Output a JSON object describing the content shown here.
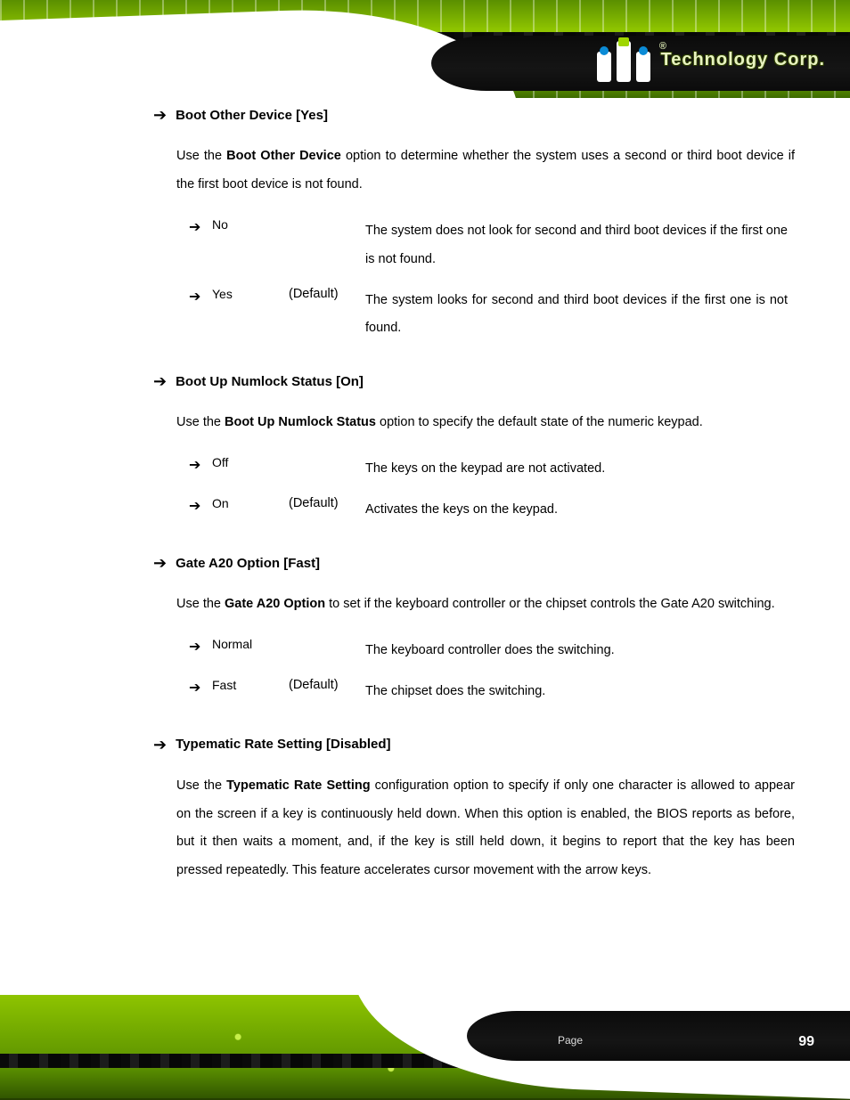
{
  "header": {
    "brand_text": "Technology Corp.",
    "registered_mark": "®"
  },
  "sections": [
    {
      "title": "Boot Other Device [Yes]",
      "intro_pre": "Use the ",
      "intro_bold": "Boot Other Device",
      "intro_post": " option to determine whether the system uses a second or third boot device if the first boot device is not found.",
      "options": [
        {
          "name": "No",
          "default": "",
          "desc": "The system does not look for second and third boot devices if the first one is not found."
        },
        {
          "name": "Yes",
          "default": "(Default)",
          "desc": "The system looks for second and third boot devices if the first one is not found."
        }
      ]
    },
    {
      "title": "Boot Up Numlock Status [On]",
      "intro_pre": "Use the ",
      "intro_bold": "Boot Up Numlock Status",
      "intro_post": " option to specify the default state of the numeric keypad.",
      "options": [
        {
          "name": "Off",
          "default": "",
          "desc": "The keys on the keypad are not activated."
        },
        {
          "name": "On",
          "default": "(Default)",
          "desc": "Activates the keys on the keypad."
        }
      ]
    },
    {
      "title": "Gate A20 Option [Fast]",
      "intro_pre": "Use the ",
      "intro_bold": "Gate A20 Option",
      "intro_post": " to set if the keyboard controller or the chipset controls the Gate A20 switching.",
      "options": [
        {
          "name": "Normal",
          "default": "",
          "desc": "The keyboard controller does the switching."
        },
        {
          "name": "Fast",
          "default": "(Default)",
          "desc": "The chipset does the switching."
        }
      ]
    },
    {
      "title": "Typematic Rate Setting [Disabled]",
      "intro_pre": "Use the ",
      "intro_bold": "Typematic Rate Setting",
      "intro_post": " configuration option to specify if only one character is allowed to appear on the screen if a key is continuously held down. When this option is enabled, the BIOS reports as before, but it then waits a moment, and, if the key is still held down, it begins to report that the key has been pressed repeatedly. This feature accelerates cursor movement with the arrow keys.",
      "options": []
    }
  ],
  "footer": {
    "page_label": "Page",
    "page_number": "99"
  },
  "colors": {
    "pcb_green_light": "#9fd600",
    "pcb_green_mid": "#8ec400",
    "pcb_green_dark": "#5a8f00",
    "accent_blue": "#0b8bd6",
    "text": "#000000",
    "bg": "#ffffff"
  },
  "typography": {
    "body_size_pt": 11,
    "heading_size_pt": 11,
    "line_height": 2.2,
    "font_family": "Arial"
  }
}
